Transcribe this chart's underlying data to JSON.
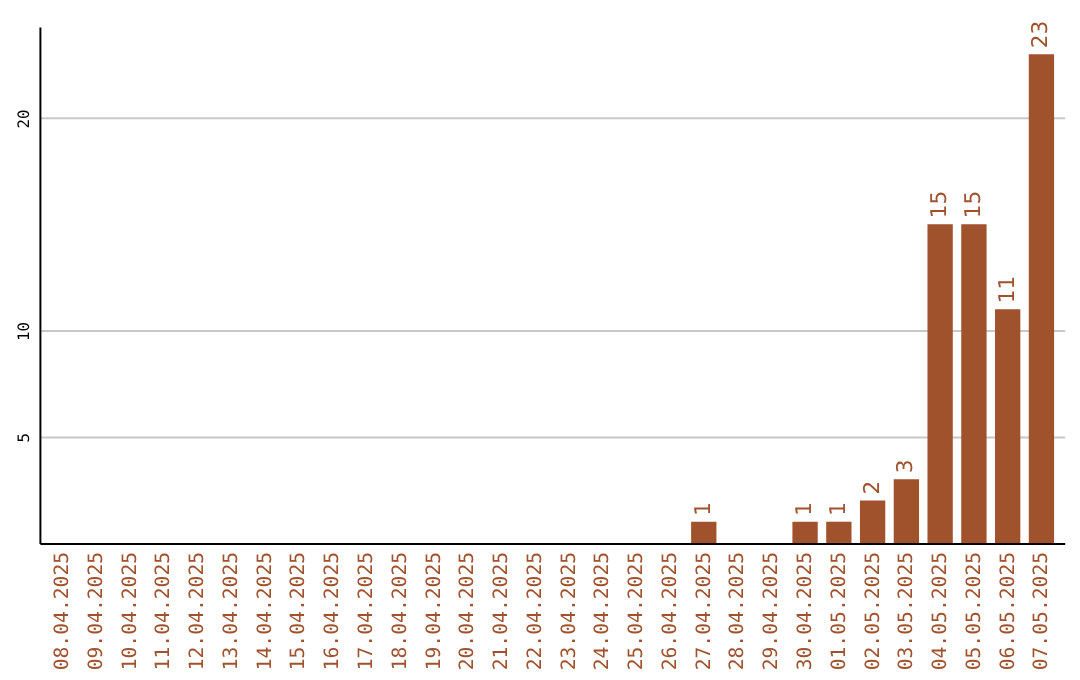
{
  "chart_data": {
    "type": "bar",
    "categories": [
      "08.04.2025",
      "09.04.2025",
      "10.04.2025",
      "11.04.2025",
      "12.04.2025",
      "13.04.2025",
      "14.04.2025",
      "15.04.2025",
      "16.04.2025",
      "17.04.2025",
      "18.04.2025",
      "19.04.2025",
      "20.04.2025",
      "21.04.2025",
      "22.04.2025",
      "23.04.2025",
      "24.04.2025",
      "25.04.2025",
      "26.04.2025",
      "27.04.2025",
      "28.04.2025",
      "29.04.2025",
      "30.04.2025",
      "01.05.2025",
      "02.05.2025",
      "03.05.2025",
      "04.05.2025",
      "05.05.2025",
      "06.05.2025",
      "07.05.2025"
    ],
    "values": [
      0,
      0,
      0,
      0,
      0,
      0,
      0,
      0,
      0,
      0,
      0,
      0,
      0,
      0,
      0,
      0,
      0,
      0,
      0,
      1,
      0,
      0,
      1,
      1,
      2,
      3,
      15,
      15,
      11,
      23
    ],
    "value_labels": [
      null,
      null,
      null,
      null,
      null,
      null,
      null,
      null,
      null,
      null,
      null,
      null,
      null,
      null,
      null,
      null,
      null,
      null,
      null,
      "1",
      null,
      null,
      "1",
      "1",
      "2",
      "3",
      "15",
      "15",
      "11",
      "23"
    ],
    "color": "#a0522d",
    "ylim": [
      0,
      24.3
    ],
    "yticks": [
      5,
      10,
      20
    ],
    "grid": "y"
  }
}
